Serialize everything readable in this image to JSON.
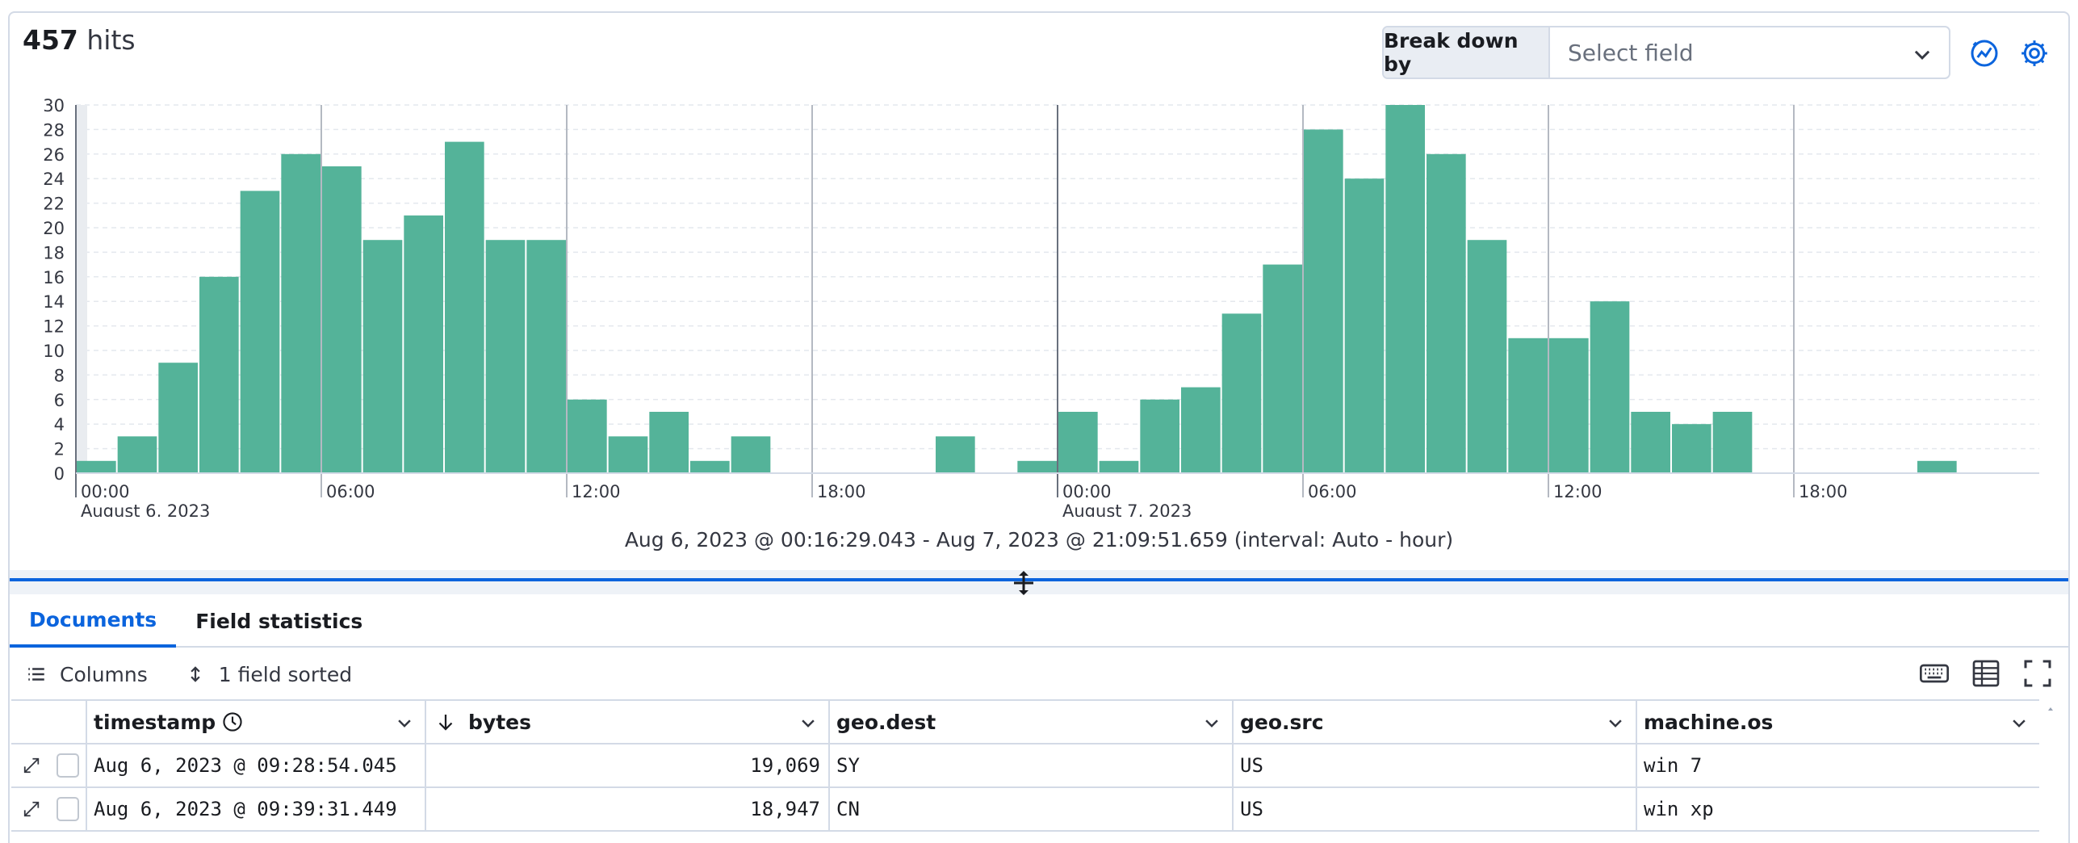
{
  "header": {
    "hits_count": "457",
    "hits_label": " hits",
    "breakdown_label": "Break down by",
    "breakdown_placeholder": "Select field"
  },
  "chart_data": {
    "type": "bar",
    "x_unit": "hour",
    "x_start": "2023-08-06T00:00",
    "x": [
      "2023-08-06 00:00",
      "2023-08-06 01:00",
      "2023-08-06 02:00",
      "2023-08-06 03:00",
      "2023-08-06 04:00",
      "2023-08-06 05:00",
      "2023-08-06 06:00",
      "2023-08-06 07:00",
      "2023-08-06 08:00",
      "2023-08-06 09:00",
      "2023-08-06 10:00",
      "2023-08-06 11:00",
      "2023-08-06 12:00",
      "2023-08-06 13:00",
      "2023-08-06 14:00",
      "2023-08-06 15:00",
      "2023-08-06 16:00",
      "2023-08-06 17:00",
      "2023-08-06 18:00",
      "2023-08-06 19:00",
      "2023-08-06 20:00",
      "2023-08-06 21:00",
      "2023-08-06 22:00",
      "2023-08-06 23:00",
      "2023-08-07 00:00",
      "2023-08-07 01:00",
      "2023-08-07 02:00",
      "2023-08-07 03:00",
      "2023-08-07 04:00",
      "2023-08-07 05:00",
      "2023-08-07 06:00",
      "2023-08-07 07:00",
      "2023-08-07 08:00",
      "2023-08-07 09:00",
      "2023-08-07 10:00",
      "2023-08-07 11:00",
      "2023-08-07 12:00",
      "2023-08-07 13:00",
      "2023-08-07 14:00",
      "2023-08-07 15:00",
      "2023-08-07 16:00",
      "2023-08-07 17:00",
      "2023-08-07 18:00",
      "2023-08-07 19:00",
      "2023-08-07 20:00",
      "2023-08-07 21:00"
    ],
    "values": [
      1,
      3,
      9,
      16,
      23,
      26,
      25,
      19,
      21,
      27,
      19,
      19,
      6,
      3,
      5,
      1,
      3,
      0,
      0,
      0,
      0,
      3,
      0,
      1,
      5,
      1,
      6,
      7,
      13,
      17,
      28,
      24,
      30,
      26,
      19,
      11,
      11,
      14,
      5,
      4,
      5,
      0,
      0,
      0,
      0,
      1
    ],
    "ylim": [
      0,
      30
    ],
    "y_ticks": [
      0,
      2,
      4,
      6,
      8,
      10,
      12,
      14,
      16,
      18,
      20,
      22,
      24,
      26,
      28,
      30
    ],
    "x_tick_labels": [
      {
        "label": "00:00",
        "sub": "August 6, 2023",
        "hour": 0
      },
      {
        "label": "06:00",
        "sub": "",
        "hour": 6
      },
      {
        "label": "12:00",
        "sub": "",
        "hour": 12
      },
      {
        "label": "18:00",
        "sub": "",
        "hour": 18
      },
      {
        "label": "00:00",
        "sub": "August 7, 2023",
        "hour": 24
      },
      {
        "label": "06:00",
        "sub": "",
        "hour": 30
      },
      {
        "label": "12:00",
        "sub": "",
        "hour": 36
      },
      {
        "label": "18:00",
        "sub": "",
        "hour": 42
      }
    ],
    "bar_color": "#54b399",
    "grid": true
  },
  "time_range": "Aug 6, 2023 @ 00:16:29.043 - Aug 7, 2023 @ 21:09:51.659 (interval: Auto - hour)",
  "tabs": [
    {
      "label": "Documents",
      "active": true
    },
    {
      "label": "Field statistics",
      "active": false
    }
  ],
  "toolbar": {
    "columns_label": "Columns",
    "sorted_label": "1 field sorted"
  },
  "table": {
    "columns": [
      "timestamp",
      "bytes",
      "geo.dest",
      "geo.src",
      "machine.os"
    ],
    "rows": [
      {
        "timestamp": "Aug 6, 2023 @ 09:28:54.045",
        "bytes": "19,069",
        "geo_dest": "SY",
        "geo_src": "US",
        "machine_os": "win 7"
      },
      {
        "timestamp": "Aug 6, 2023 @ 09:39:31.449",
        "bytes": "18,947",
        "geo_dest": "CN",
        "geo_src": "US",
        "machine_os": "win xp"
      }
    ]
  },
  "colors": {
    "accent": "#0b64dd",
    "bar": "#54b399"
  }
}
